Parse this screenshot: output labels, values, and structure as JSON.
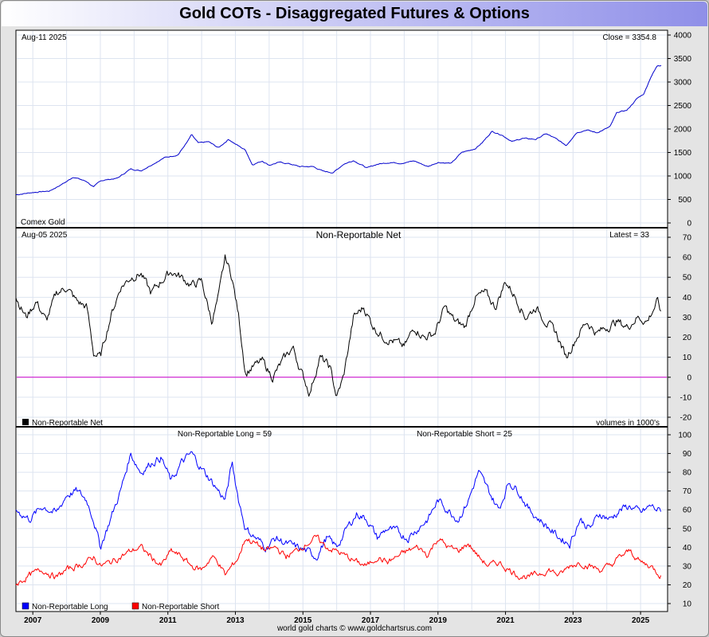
{
  "title": "Gold COTs - Disaggregated Futures & Options",
  "footer": "world gold charts © www.goldchartsrus.com",
  "x_axis": {
    "years": [
      "2007",
      "2009",
      "2011",
      "2013",
      "2015",
      "2017",
      "2019",
      "2021",
      "2023",
      "2025"
    ]
  },
  "colors": {
    "price_line": "#0000cc",
    "net_line": "#000000",
    "zero_line": "#cc00cc",
    "long_line": "#0000ff",
    "short_line": "#ff0000",
    "grid": "#dde4f0"
  },
  "chart_data": [
    {
      "type": "line",
      "panel": "price",
      "date_label": "Aug-11  2025",
      "latest_label": "Close = 3354.8",
      "bottom_left_label": "Comex Gold",
      "ylim": [
        0,
        4000
      ],
      "yticks": [
        "0",
        "500",
        "1000",
        "1500",
        "2000",
        "2500",
        "3000",
        "3500",
        "4000"
      ],
      "xlim": [
        2006.5,
        2025.8
      ],
      "series": [
        {
          "x": [
            2006.5,
            2007.0,
            2007.5,
            2008.0,
            2008.2,
            2008.6,
            2008.8,
            2009.0,
            2009.5,
            2009.9,
            2010.2,
            2010.5,
            2010.9,
            2011.3,
            2011.6,
            2011.7,
            2011.9,
            2012.2,
            2012.5,
            2012.8,
            2013.0,
            2013.3,
            2013.5,
            2013.8,
            2014.0,
            2014.3,
            2014.6,
            2014.9,
            2015.3,
            2015.6,
            2015.9,
            2016.2,
            2016.5,
            2016.9,
            2017.2,
            2017.6,
            2017.9,
            2018.3,
            2018.7,
            2019.0,
            2019.4,
            2019.7,
            2020.1,
            2020.3,
            2020.6,
            2020.9,
            2021.2,
            2021.5,
            2021.9,
            2022.2,
            2022.5,
            2022.8,
            2023.1,
            2023.4,
            2023.7,
            2023.9,
            2024.1,
            2024.3,
            2024.6,
            2024.9,
            2025.1,
            2025.3,
            2025.5,
            2025.61
          ],
          "values": [
            600,
            650,
            680,
            880,
            980,
            880,
            760,
            900,
            950,
            1150,
            1110,
            1230,
            1390,
            1450,
            1750,
            1880,
            1700,
            1730,
            1600,
            1780,
            1680,
            1550,
            1240,
            1320,
            1230,
            1290,
            1260,
            1200,
            1200,
            1100,
            1070,
            1250,
            1330,
            1170,
            1250,
            1290,
            1270,
            1320,
            1200,
            1290,
            1270,
            1500,
            1580,
            1700,
            1950,
            1870,
            1730,
            1800,
            1780,
            1900,
            1790,
            1650,
            1920,
            1980,
            1920,
            1980,
            2050,
            2350,
            2400,
            2650,
            2750,
            3100,
            3350,
            3354.8
          ]
        }
      ]
    },
    {
      "type": "line",
      "panel": "net",
      "date_label": "Aug-05  2025",
      "title": "Non-Reportable Net",
      "latest_label": "Latest = 33",
      "legend": "Non-Reportable Net",
      "units_label": "volumes in 1000's",
      "ylim": [
        -20,
        70
      ],
      "yticks": [
        "-20",
        "-10",
        "0",
        "10",
        "20",
        "30",
        "40",
        "50",
        "60",
        "70"
      ],
      "xlim": [
        2006.5,
        2025.8
      ],
      "series": [
        {
          "name": "Non-Reportable Net",
          "x": [
            2006.5,
            2006.8,
            2007.1,
            2007.4,
            2007.7,
            2008.0,
            2008.3,
            2008.6,
            2008.8,
            2009.0,
            2009.3,
            2009.6,
            2009.9,
            2010.2,
            2010.5,
            2010.8,
            2011.1,
            2011.4,
            2011.7,
            2012.0,
            2012.3,
            2012.5,
            2012.7,
            2012.9,
            2013.1,
            2013.3,
            2013.5,
            2013.8,
            2014.1,
            2014.4,
            2014.7,
            2014.9,
            2015.2,
            2015.5,
            2015.8,
            2016.0,
            2016.2,
            2016.5,
            2016.8,
            2017.1,
            2017.4,
            2017.7,
            2018.0,
            2018.3,
            2018.6,
            2018.9,
            2019.2,
            2019.5,
            2019.8,
            2020.1,
            2020.4,
            2020.7,
            2021.0,
            2021.3,
            2021.6,
            2021.9,
            2022.2,
            2022.5,
            2022.8,
            2023.1,
            2023.4,
            2023.7,
            2024.0,
            2024.3,
            2024.6,
            2024.9,
            2025.2,
            2025.5,
            2025.6
          ],
          "values": [
            40,
            30,
            38,
            28,
            42,
            45,
            38,
            35,
            12,
            10,
            30,
            45,
            50,
            52,
            42,
            48,
            53,
            50,
            46,
            48,
            28,
            40,
            60,
            50,
            30,
            2,
            5,
            8,
            0,
            8,
            15,
            5,
            -8,
            10,
            5,
            -10,
            0,
            30,
            35,
            25,
            20,
            18,
            15,
            25,
            20,
            22,
            35,
            28,
            25,
            40,
            42,
            35,
            48,
            40,
            30,
            35,
            28,
            22,
            10,
            20,
            28,
            22,
            25,
            28,
            25,
            30,
            28,
            38,
            33
          ]
        }
      ]
    },
    {
      "type": "line",
      "panel": "long_short",
      "long_label": "Non-Reportable Long = 59",
      "short_label": "Non-Reportable Short = 25",
      "legend": [
        "Non-Reportable Long",
        "Non-Reportable Short"
      ],
      "ylim": [
        10,
        100
      ],
      "yticks": [
        "10",
        "20",
        "30",
        "40",
        "50",
        "60",
        "70",
        "80",
        "90",
        "100"
      ],
      "xlim": [
        2006.5,
        2025.8
      ],
      "series": [
        {
          "name": "Non-Reportable Long",
          "x": [
            2006.5,
            2006.9,
            2007.3,
            2007.7,
            2008.0,
            2008.3,
            2008.6,
            2008.8,
            2009.0,
            2009.3,
            2009.6,
            2009.9,
            2010.2,
            2010.5,
            2010.8,
            2011.1,
            2011.4,
            2011.7,
            2012.0,
            2012.3,
            2012.5,
            2012.7,
            2012.9,
            2013.1,
            2013.3,
            2013.6,
            2013.9,
            2014.2,
            2014.5,
            2014.8,
            2015.1,
            2015.4,
            2015.7,
            2016.0,
            2016.3,
            2016.6,
            2016.9,
            2017.2,
            2017.5,
            2017.8,
            2018.1,
            2018.4,
            2018.7,
            2019.0,
            2019.3,
            2019.6,
            2019.9,
            2020.2,
            2020.5,
            2020.8,
            2021.1,
            2021.4,
            2021.7,
            2022.0,
            2022.3,
            2022.6,
            2022.9,
            2023.2,
            2023.5,
            2023.8,
            2024.1,
            2024.4,
            2024.7,
            2025.0,
            2025.3,
            2025.6
          ],
          "values": [
            60,
            55,
            62,
            58,
            68,
            70,
            65,
            55,
            40,
            55,
            70,
            90,
            80,
            85,
            88,
            75,
            85,
            90,
            82,
            75,
            70,
            65,
            85,
            65,
            50,
            45,
            40,
            45,
            42,
            40,
            38,
            35,
            45,
            40,
            50,
            58,
            55,
            45,
            50,
            48,
            45,
            50,
            55,
            65,
            60,
            55,
            65,
            80,
            70,
            60,
            75,
            70,
            60,
            55,
            50,
            45,
            42,
            55,
            50,
            58,
            55,
            60,
            62,
            58,
            62,
            59
          ]
        },
        {
          "name": "Non-Reportable Short",
          "x": [
            2006.5,
            2006.9,
            2007.3,
            2007.7,
            2008.0,
            2008.3,
            2008.6,
            2008.8,
            2009.0,
            2009.3,
            2009.6,
            2009.9,
            2010.2,
            2010.5,
            2010.8,
            2011.1,
            2011.4,
            2011.7,
            2012.0,
            2012.3,
            2012.5,
            2012.7,
            2012.9,
            2013.1,
            2013.3,
            2013.6,
            2013.9,
            2014.2,
            2014.5,
            2014.8,
            2015.1,
            2015.4,
            2015.7,
            2016.0,
            2016.3,
            2016.6,
            2016.9,
            2017.2,
            2017.5,
            2017.8,
            2018.1,
            2018.4,
            2018.7,
            2019.0,
            2019.3,
            2019.6,
            2019.9,
            2020.2,
            2020.5,
            2020.8,
            2021.1,
            2021.4,
            2021.7,
            2022.0,
            2022.3,
            2022.6,
            2022.9,
            2023.2,
            2023.5,
            2023.8,
            2024.1,
            2024.4,
            2024.7,
            2025.0,
            2025.3,
            2025.6
          ],
          "values": [
            20,
            25,
            28,
            24,
            28,
            30,
            32,
            35,
            30,
            32,
            35,
            38,
            40,
            35,
            30,
            38,
            35,
            30,
            28,
            35,
            32,
            25,
            30,
            35,
            45,
            42,
            38,
            40,
            35,
            38,
            42,
            45,
            40,
            38,
            35,
            32,
            30,
            35,
            32,
            35,
            38,
            40,
            36,
            45,
            40,
            38,
            42,
            35,
            30,
            32,
            28,
            25,
            24,
            26,
            28,
            25,
            30,
            32,
            30,
            28,
            30,
            35,
            38,
            32,
            30,
            25
          ]
        }
      ]
    }
  ]
}
